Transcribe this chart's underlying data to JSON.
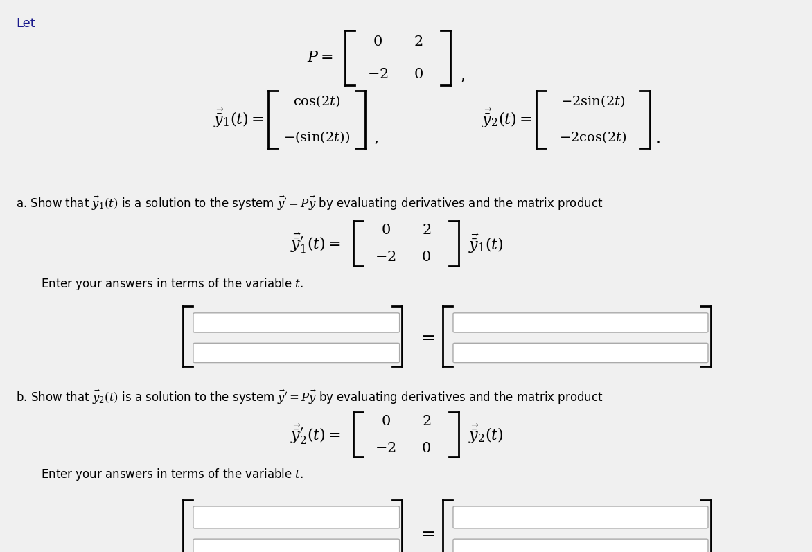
{
  "bg_color": "#f0f0f0",
  "text_color": "#000000",
  "blue_color": "#0000cc",
  "link_color": "#cc6600",
  "fig_width": 11.72,
  "fig_height": 7.97,
  "title_let": "Let",
  "math_P": "P = \\begin{bmatrix} 0 & 2 \\\\ -2 & 0 \\end{bmatrix},",
  "math_y1": "\\vec{y}_1(t) = \\begin{bmatrix} \\cos(2t) \\\\ -(\\sin(2t)) \\end{bmatrix},\\quad \\vec{y}_2(t) = \\begin{bmatrix} -2\\sin(2t) \\\\ -2\\cos(2t) \\end{bmatrix}.",
  "text_a": "a. Show that $\\vec{\\bar{y}}_1(t)$ is a solution to the system $\\vec{\\bar{y}}' = P\\vec{\\bar{y}}$ by evaluating derivatives and the matrix product",
  "math_a_eq": "\\vec{\\bar{y}}_1'(t) = \\begin{bmatrix} 0 & 2 \\\\ -2 & 0 \\end{bmatrix} \\vec{\\bar{y}}_1(t)",
  "text_enter_a": "Enter your answers in terms of the variable $t$.",
  "text_b": "b. Show that $\\vec{\\bar{y}}_2(t)$ is a solution to the system $\\vec{\\bar{y}}' = P\\vec{\\bar{y}}$ by evaluating derivatives and the matrix product",
  "math_b_eq": "\\vec{\\bar{y}}_2'(t) = \\begin{bmatrix} 0 & 2 \\\\ -2 & 0 \\end{bmatrix} \\vec{\\bar{y}}_2(t)",
  "text_enter_b": "Enter your answers in terms of the variable $t$."
}
